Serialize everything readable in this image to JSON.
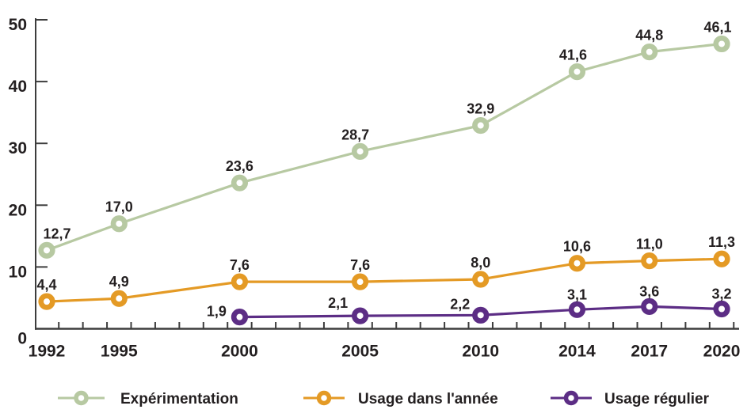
{
  "chart_data": {
    "type": "line",
    "x": [
      1992,
      1995,
      2000,
      2005,
      2010,
      2014,
      2017,
      2020
    ],
    "series": [
      {
        "name": "Expérimentation",
        "color": "#b7c9a2",
        "values": [
          12.7,
          17.0,
          23.6,
          28.7,
          32.9,
          41.6,
          44.8,
          46.1
        ],
        "labels": [
          "12,7",
          "17,0",
          "23,6",
          "28,7",
          "32,9",
          "41,6",
          "44,8",
          "46,1"
        ],
        "label_dx": [
          13,
          0,
          0,
          -6,
          0,
          -5,
          0,
          -5
        ],
        "label_dy": [
          0,
          0,
          0,
          0,
          0,
          0,
          0,
          0
        ]
      },
      {
        "name": "Usage dans l'année",
        "color": "#e49a25",
        "values": [
          4.4,
          4.9,
          7.6,
          7.6,
          8.0,
          10.6,
          11.0,
          11.3
        ],
        "labels": [
          "4,4",
          "4,9",
          "7,6",
          "7,6",
          "8,0",
          "10,6",
          "11,0",
          "11,3"
        ],
        "label_dx": [
          0,
          0,
          0,
          0,
          0,
          0,
          0,
          0
        ],
        "label_dy": [
          0,
          0,
          0,
          0,
          0,
          0,
          0,
          0
        ]
      },
      {
        "name": "Usage régulier",
        "color": "#5c2d85",
        "values": [
          null,
          null,
          1.9,
          2.1,
          2.2,
          3.1,
          3.6,
          3.2
        ],
        "labels": [
          null,
          null,
          "1,9",
          "2,1",
          "2,2",
          "3,1",
          "3,6",
          "3,2"
        ],
        "label_dx": [
          0,
          0,
          -29,
          -28,
          -26,
          0,
          0,
          0
        ],
        "label_dy": [
          0,
          0,
          14,
          5,
          7,
          2,
          2,
          2
        ]
      }
    ],
    "xlabel": "",
    "ylabel": "",
    "title": "",
    "ylim": [
      0,
      50
    ],
    "yticks": [
      0,
      10,
      20,
      30,
      40,
      50
    ],
    "ytick_labels": [
      "0",
      "10",
      "20",
      "30",
      "40",
      "50"
    ],
    "xtick_labels": [
      "1992",
      "1995",
      "2000",
      "2005",
      "2010",
      "2014",
      "2017",
      "2020"
    ],
    "grid": false,
    "legend_position": "bottom",
    "legend": [
      "Expérimentation",
      "Usage dans l'année",
      "Usage régulier"
    ]
  },
  "colors": {
    "axis": "#3d3d3d",
    "text": "#231f20",
    "background": "#ffffff"
  }
}
